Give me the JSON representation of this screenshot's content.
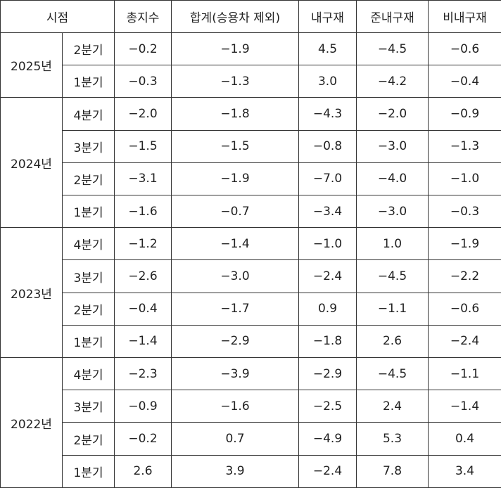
{
  "header": [
    "시점",
    "총지수",
    "합계(승용차 제외)",
    "내구재",
    "준내구재",
    "비내구재"
  ],
  "groups": [
    {
      "year": "2025년",
      "rows": [
        {
          "quarter": "2분기",
          "values": [
            "−0.2",
            "−1.9",
            "4.5",
            "−4.5",
            "−0.6"
          ]
        },
        {
          "quarter": "1분기",
          "values": [
            "−0.3",
            "−1.3",
            "3.0",
            "−4.2",
            "−0.4"
          ]
        }
      ]
    },
    {
      "year": "2024년",
      "rows": [
        {
          "quarter": "4분기",
          "values": [
            "−2.0",
            "−1.8",
            "−4.3",
            "−2.0",
            "−0.9"
          ]
        },
        {
          "quarter": "3분기",
          "values": [
            "−1.5",
            "−1.5",
            "−0.8",
            "−3.0",
            "−1.3"
          ]
        },
        {
          "quarter": "2분기",
          "values": [
            "−3.1",
            "−1.9",
            "−7.0",
            "−4.0",
            "−1.0"
          ]
        },
        {
          "quarter": "1분기",
          "values": [
            "−1.6",
            "−0.7",
            "−3.4",
            "−3.0",
            "−0.3"
          ]
        }
      ]
    },
    {
      "year": "2023년",
      "rows": [
        {
          "quarter": "4분기",
          "values": [
            "−1.2",
            "−1.4",
            "−1.0",
            "1.0",
            "−1.9"
          ]
        },
        {
          "quarter": "3분기",
          "values": [
            "−2.6",
            "−3.0",
            "−2.4",
            "−4.5",
            "−2.2"
          ]
        },
        {
          "quarter": "2분기",
          "values": [
            "−0.4",
            "−1.7",
            "0.9",
            "−1.1",
            "−0.6"
          ]
        },
        {
          "quarter": "1분기",
          "values": [
            "−1.4",
            "−2.9",
            "−1.8",
            "2.6",
            "−2.4"
          ]
        }
      ]
    },
    {
      "year": "2022년",
      "rows": [
        {
          "quarter": "4분기",
          "values": [
            "−2.3",
            "−3.9",
            "−2.9",
            "−4.5",
            "−1.1"
          ]
        },
        {
          "quarter": "3분기",
          "values": [
            "−0.9",
            "−1.6",
            "−2.5",
            "2.4",
            "−1.4"
          ]
        },
        {
          "quarter": "2분기",
          "values": [
            "−0.2",
            "0.7",
            "−4.9",
            "5.3",
            "0.4"
          ]
        },
        {
          "quarter": "1분기",
          "values": [
            "2.6",
            "3.9",
            "−2.4",
            "7.8",
            "3.4"
          ]
        }
      ]
    }
  ]
}
